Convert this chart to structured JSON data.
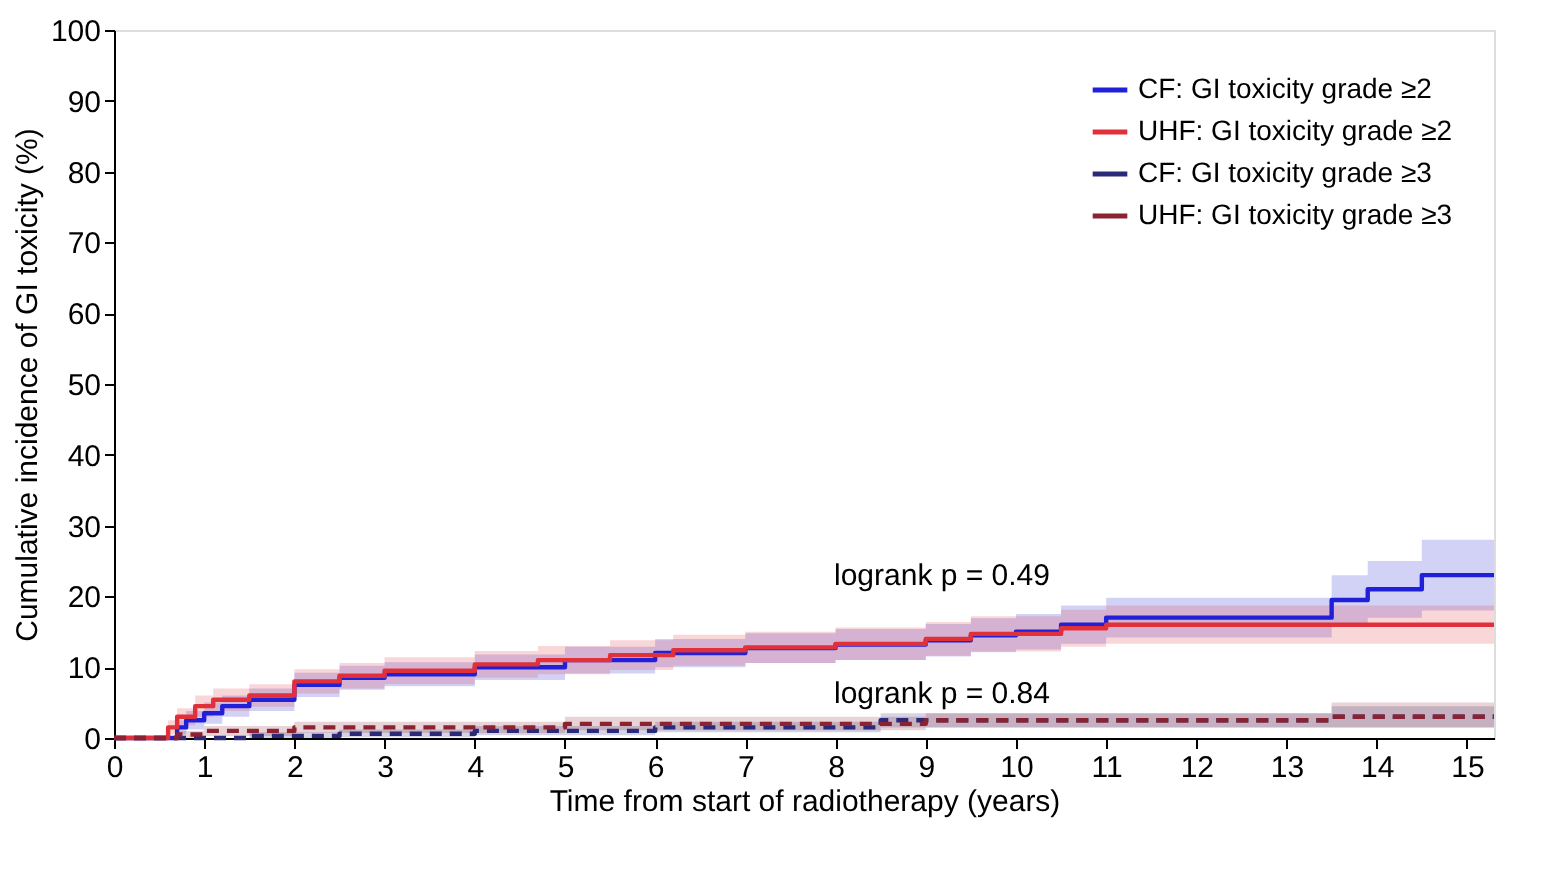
{
  "chart_data": {
    "type": "step",
    "xlabel": "Time from start of radiotherapy (years)",
    "ylabel": "Cumulative incidence of GI toxicity (%)",
    "xlim": [
      0,
      15.3
    ],
    "ylim": [
      0,
      100
    ],
    "xticks": [
      0,
      1,
      2,
      3,
      4,
      5,
      6,
      7,
      8,
      9,
      10,
      11,
      12,
      13,
      14,
      15
    ],
    "yticks": [
      0,
      10,
      20,
      30,
      40,
      50,
      60,
      70,
      80,
      90,
      100
    ],
    "grid": false,
    "legend": "top right",
    "annotations": [
      "logrank p = 0.49",
      "logrank p = 0.84"
    ],
    "series": [
      {
        "name": "CF:   GI toxicity grade ≥2",
        "color": "#2020d8",
        "line_style": "solid",
        "x": [
          0,
          0.6,
          0.7,
          0.8,
          1.0,
          1.2,
          1.5,
          2.0,
          2.5,
          3,
          4,
          5,
          6,
          7,
          8,
          9,
          9.5,
          10,
          10.5,
          11,
          13.5,
          13.9,
          14.5,
          15.3
        ],
        "values": [
          0,
          0,
          1.5,
          2.5,
          3.5,
          4.5,
          5.4,
          7.5,
          8.5,
          9,
          10,
          11,
          12,
          12.7,
          13.2,
          13.8,
          14.5,
          15,
          16,
          17,
          19.5,
          21,
          23,
          23
        ],
        "lower": [
          0,
          0,
          0.5,
          1.2,
          2,
          3,
          3.8,
          5.8,
          6.8,
          7.3,
          8.2,
          9.1,
          10,
          10.6,
          11,
          11.5,
          12.1,
          12.5,
          13.3,
          14.2,
          16,
          17,
          18,
          18
        ],
        "upper": [
          0,
          0,
          2.5,
          3.8,
          5,
          6,
          7,
          9.2,
          10.2,
          10.7,
          11.8,
          12.9,
          14,
          14.8,
          15.4,
          16.1,
          16.9,
          17.5,
          18.7,
          19.8,
          23,
          25,
          28,
          28
        ]
      },
      {
        "name": "UHF: GI toxicity grade ≥2",
        "color": "#e0303a",
        "line_style": "solid",
        "x": [
          0,
          0.5,
          0.6,
          0.7,
          0.9,
          1.1,
          1.5,
          2.0,
          2.5,
          3,
          4,
          4.7,
          5.5,
          6.2,
          7,
          8,
          9,
          9.5,
          10.5,
          11,
          15.3
        ],
        "values": [
          0,
          0,
          1.5,
          3,
          4.5,
          5.4,
          6,
          8,
          8.8,
          9.5,
          10.4,
          11,
          11.7,
          12.4,
          12.8,
          13.3,
          14,
          14.7,
          15.5,
          16,
          16
        ],
        "lower": [
          0,
          0,
          0.5,
          1.8,
          3,
          3.8,
          4.4,
          6.3,
          7,
          7.6,
          8.5,
          9,
          9.6,
          10.2,
          10.6,
          11,
          11.6,
          12.2,
          12.9,
          13.3,
          13
        ],
        "upper": [
          0,
          0,
          2.5,
          4.2,
          6,
          7,
          7.6,
          9.7,
          10.6,
          11.4,
          12.3,
          13,
          13.8,
          14.6,
          15,
          15.6,
          16.4,
          17.2,
          18.1,
          18.7,
          19
        ]
      },
      {
        "name": "CF:   GI toxicity grade ≥3",
        "color": "#2a2a78",
        "line_style": "dashed",
        "x": [
          0,
          1.5,
          2.5,
          4,
          6,
          8.5,
          13.5,
          15.3
        ],
        "values": [
          0,
          0.3,
          0.6,
          1,
          1.5,
          2.5,
          3,
          3
        ],
        "lower": [
          0,
          0,
          0.1,
          0.4,
          0.8,
          1.5,
          1.5,
          1.5
        ],
        "upper": [
          0,
          0.8,
          1.2,
          1.7,
          2.3,
          3.5,
          4.5,
          4.5
        ]
      },
      {
        "name": "UHF: GI toxicity grade ≥3",
        "color": "#8b2232",
        "line_style": "dashed",
        "x": [
          0,
          0.7,
          1.0,
          2,
          5,
          9,
          13.5,
          15.3
        ],
        "values": [
          0,
          0.5,
          1,
          1.5,
          2,
          2.5,
          3,
          3
        ],
        "lower": [
          0,
          0,
          0.3,
          0.7,
          1.1,
          1.5,
          1.5,
          1.5
        ],
        "upper": [
          0,
          1,
          1.7,
          2.3,
          3,
          3.5,
          5,
          5
        ]
      }
    ]
  }
}
